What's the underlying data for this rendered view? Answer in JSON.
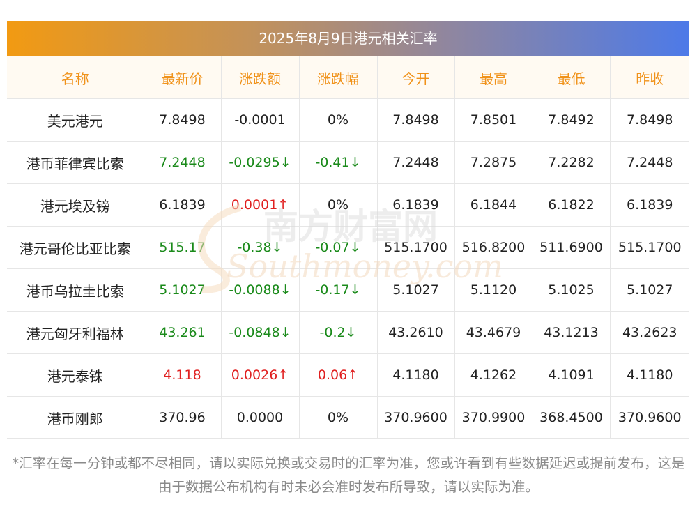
{
  "title": "2025年8月9日港元相关汇率",
  "headers": [
    "名称",
    "最新价",
    "涨跌额",
    "涨跌幅",
    "今开",
    "最高",
    "最低",
    "昨收"
  ],
  "rows": [
    {
      "name": "美元港元",
      "latest": "7.8498",
      "change": "-0.0001",
      "pct": "0%",
      "open": "7.8498",
      "high": "7.8501",
      "low": "7.8492",
      "prev": "7.8498",
      "latest_color": "neutral",
      "change_color": "neutral",
      "pct_color": "neutral"
    },
    {
      "name": "港币菲律宾比索",
      "latest": "7.2448",
      "change": "-0.0295↓",
      "pct": "-0.41↓",
      "open": "7.2448",
      "high": "7.2875",
      "low": "7.2282",
      "prev": "7.2448",
      "latest_color": "down",
      "change_color": "down",
      "pct_color": "down"
    },
    {
      "name": "港元埃及镑",
      "latest": "6.1839",
      "change": "0.0001↑",
      "pct": "0%",
      "open": "6.1839",
      "high": "6.1844",
      "low": "6.1822",
      "prev": "6.1839",
      "latest_color": "neutral",
      "change_color": "up",
      "pct_color": "neutral"
    },
    {
      "name": "港元哥伦比亚比索",
      "latest": "515.17",
      "change": "-0.38↓",
      "pct": "-0.07↓",
      "open": "515.1700",
      "high": "516.8200",
      "low": "511.6900",
      "prev": "515.1700",
      "latest_color": "down",
      "change_color": "down",
      "pct_color": "down"
    },
    {
      "name": "港币乌拉圭比索",
      "latest": "5.1027",
      "change": "-0.0088↓",
      "pct": "-0.17↓",
      "open": "5.1027",
      "high": "5.1120",
      "low": "5.1025",
      "prev": "5.1027",
      "latest_color": "down",
      "change_color": "down",
      "pct_color": "down"
    },
    {
      "name": "港元匈牙利福林",
      "latest": "43.261",
      "change": "-0.0848↓",
      "pct": "-0.2↓",
      "open": "43.2610",
      "high": "43.4679",
      "low": "43.1213",
      "prev": "43.2623",
      "latest_color": "down",
      "change_color": "down",
      "pct_color": "down"
    },
    {
      "name": "港元泰铢",
      "latest": "4.118",
      "change": "0.0026↑",
      "pct": "0.06↑",
      "open": "4.1180",
      "high": "4.1262",
      "low": "4.1091",
      "prev": "4.1180",
      "latest_color": "up",
      "change_color": "up",
      "pct_color": "up"
    },
    {
      "name": "港币刚郎",
      "latest": "370.96",
      "change": "0.0000",
      "pct": "0%",
      "open": "370.9600",
      "high": "370.9900",
      "low": "368.4500",
      "prev": "370.9600",
      "latest_color": "neutral",
      "change_color": "neutral",
      "pct_color": "neutral"
    }
  ],
  "footnote": "*汇率在每一分钟或都不尽相同，请以实际兑换或交易时的汇率为准，您或许看到有些数据延迟或提前发布，这是由于数据公布机构有时未必会准时发布所导致，请以实际为准。",
  "watermark": {
    "cn": "南方财富网",
    "en": "Southmoney.com"
  },
  "colors": {
    "up": "#e02020",
    "down": "#1a8a1a",
    "header_text": "#f0921a",
    "gradient_start": "#f29a12",
    "gradient_end": "#4d7ae8"
  }
}
